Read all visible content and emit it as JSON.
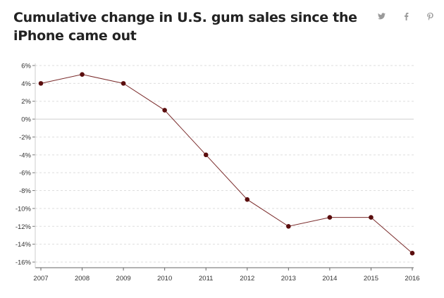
{
  "header": {
    "title": "Cumulative change in U.S. gum sales since the iPhone came out"
  },
  "share": {
    "icons": [
      "twitter-icon",
      "facebook-icon",
      "pinterest-icon"
    ],
    "icon_color": "#9a9a9a"
  },
  "chart_data": {
    "type": "line",
    "title": "Cumulative change in U.S. gum sales since the iPhone came out",
    "xlabel": "",
    "ylabel": "",
    "x": [
      2007,
      2008,
      2009,
      2010,
      2011,
      2012,
      2013,
      2014,
      2015,
      2016
    ],
    "series": [
      {
        "values": [
          4,
          5,
          4,
          1,
          -4,
          -9,
          -12,
          -11,
          -11,
          -15
        ]
      }
    ],
    "ylim": [
      -16,
      6
    ],
    "yticks": [
      6,
      4,
      2,
      0,
      -2,
      -4,
      -6,
      -8,
      -10,
      -12,
      -14,
      -16
    ],
    "ytick_labels": [
      "6%",
      "4%",
      "2%",
      "0%",
      "-2%",
      "-4%",
      "-6%",
      "-8%",
      "-10%",
      "-12%",
      "-14%",
      "-16%"
    ],
    "xtick_labels": [
      "2007",
      "2008",
      "2009",
      "2010",
      "2011",
      "2012",
      "2013",
      "2014",
      "2015",
      "2016"
    ],
    "grid": true,
    "line_color": "#7a2b2b",
    "marker_color": "#5a0d0d"
  }
}
